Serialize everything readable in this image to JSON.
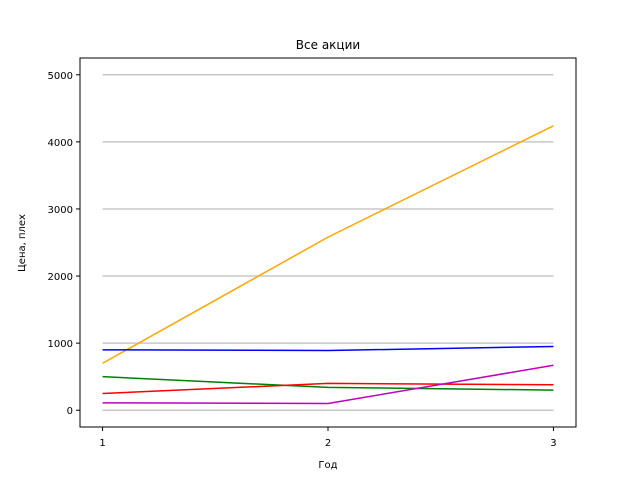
{
  "chart_data": {
    "type": "line",
    "title": "Все акции",
    "xlabel": "Год",
    "ylabel": "Цена, плех",
    "x": [
      1,
      2,
      3
    ],
    "xticks": [
      1,
      2,
      3
    ],
    "yticks": [
      0,
      1000,
      2000,
      3000,
      4000,
      5000
    ],
    "xlim": [
      0.9,
      3.1
    ],
    "ylim": [
      -250,
      5250
    ],
    "grid": "y",
    "series": [
      {
        "values": [
          700,
          2580,
          4240
        ],
        "color": "#FFA500"
      },
      {
        "values": [
          900,
          890,
          950
        ],
        "color": "#0000FF"
      },
      {
        "values": [
          500,
          340,
          300
        ],
        "color": "#008000"
      },
      {
        "values": [
          250,
          400,
          380
        ],
        "color": "#FF0000"
      },
      {
        "values": [
          110,
          100,
          670
        ],
        "color": "#BF00BF"
      }
    ]
  }
}
